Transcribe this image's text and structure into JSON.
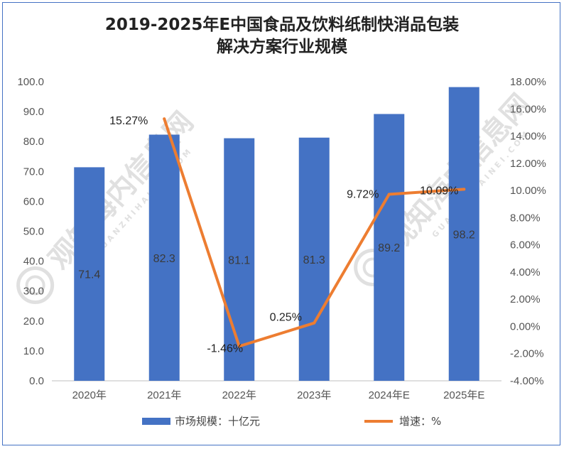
{
  "chart_data": {
    "type": "bar",
    "title_lines": [
      "2019-2025年E中国食品及饮料纸制快消品包装",
      "解决方案行业规模"
    ],
    "categories": [
      "2020年",
      "2021年",
      "2022年",
      "2023年",
      "2024年E",
      "2025年E"
    ],
    "series": [
      {
        "name": "市场规模：十亿元",
        "type": "bar",
        "axis": "left",
        "color": "#4472c4",
        "values": [
          71.4,
          82.3,
          81.1,
          81.3,
          89.2,
          98.2
        ],
        "labels": [
          "71.4",
          "82.3",
          "81.1",
          "81.3",
          "89.2",
          "98.2"
        ]
      },
      {
        "name": "增速：%",
        "type": "line",
        "axis": "right",
        "color": "#ed7d31",
        "values": [
          null,
          15.27,
          -1.46,
          0.25,
          9.72,
          10.09
        ],
        "labels": [
          "",
          "15.27%",
          "-1.46%",
          "0.25%",
          "9.72%",
          "10.09%"
        ]
      }
    ],
    "y_left": {
      "min": 0,
      "max": 100,
      "step": 10,
      "ticks": [
        "0.0",
        "10.0",
        "20.0",
        "30.0",
        "40.0",
        "50.0",
        "60.0",
        "70.0",
        "80.0",
        "90.0",
        "100.0"
      ]
    },
    "y_right": {
      "min": -4,
      "max": 18,
      "step": 2,
      "ticks": [
        "-4.00%",
        "-2.00%",
        "0.00%",
        "2.00%",
        "4.00%",
        "6.00%",
        "8.00%",
        "10.00%",
        "12.00%",
        "14.00%",
        "16.00%",
        "18.00%"
      ]
    },
    "grid": false,
    "legend_position": "bottom"
  },
  "watermark": {
    "text": "观知海内信息网",
    "sub": "GUANZHIHAINEI.COM",
    "color": "#c8c8c8"
  }
}
